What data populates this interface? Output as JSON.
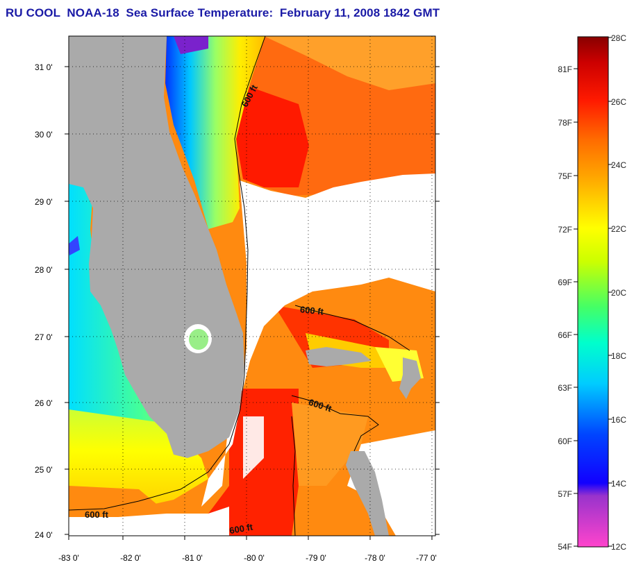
{
  "title": "RU COOL  NOAA-18  Sea Surface Temperature:  February 11, 2008 1842 GMT",
  "map": {
    "lat_labels": [
      "31 0'",
      "30 0'",
      "29 0'",
      "28 0'",
      "27 0'",
      "26 0'",
      "25 0'",
      "24 0'"
    ],
    "lon_labels": [
      "-83 0'",
      "-82 0'",
      "-81 0'",
      "-80 0'",
      "-79 0'",
      "-78 0'",
      "-77 0'"
    ],
    "contour_labels": [
      "600 ft",
      "600 ft",
      "600 ft",
      "600 ft",
      "600 ft"
    ],
    "colors": {
      "land": "#aaaaaa",
      "clouds": "#ffffff",
      "warm_water": "#ff2200",
      "mid_water": "#ff8800",
      "cool_water": "#ffff00",
      "cold_water": "#0000ff"
    }
  },
  "colorbar": {
    "fahrenheit_labels": [
      "81F",
      "78F",
      "75F",
      "72F",
      "69F",
      "66F",
      "63F",
      "60F",
      "57F",
      "54F"
    ],
    "celsius_labels": [
      "28C",
      "26C",
      "24C",
      "22C",
      "20C",
      "18C",
      "16C",
      "14C",
      "12C"
    ],
    "range_c": [
      12,
      28
    ],
    "colors": [
      "#ff44cc",
      "#9933cc",
      "#0000ff",
      "#0088ff",
      "#00ffff",
      "#00ff88",
      "#ccff00",
      "#ffff00",
      "#ffaa00",
      "#ff6600",
      "#ff0000",
      "#880000"
    ]
  }
}
